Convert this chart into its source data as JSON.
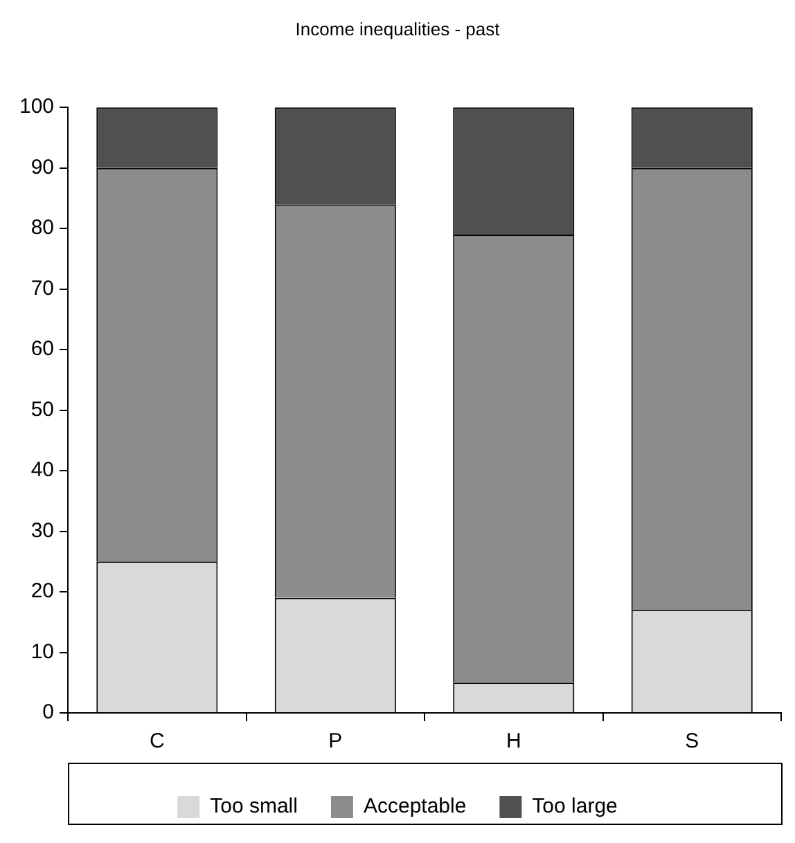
{
  "chart_data": {
    "type": "bar",
    "title": "Income inequalities - past",
    "categories": [
      "C",
      "P",
      "H",
      "S"
    ],
    "stacked": true,
    "series": [
      {
        "name": "Too small",
        "color": "#d9d9d9",
        "values": [
          25,
          19,
          5,
          17
        ]
      },
      {
        "name": "Acceptable",
        "color": "#8c8c8c",
        "values": [
          65,
          65,
          74,
          73
        ]
      },
      {
        "name": "Too large",
        "color": "#505050",
        "values": [
          10,
          16,
          21,
          10
        ]
      }
    ],
    "ylim": [
      0,
      100
    ],
    "yticks": [
      0,
      10,
      20,
      30,
      40,
      50,
      60,
      70,
      80,
      90,
      100
    ],
    "grid": false,
    "legend": "bottom"
  }
}
